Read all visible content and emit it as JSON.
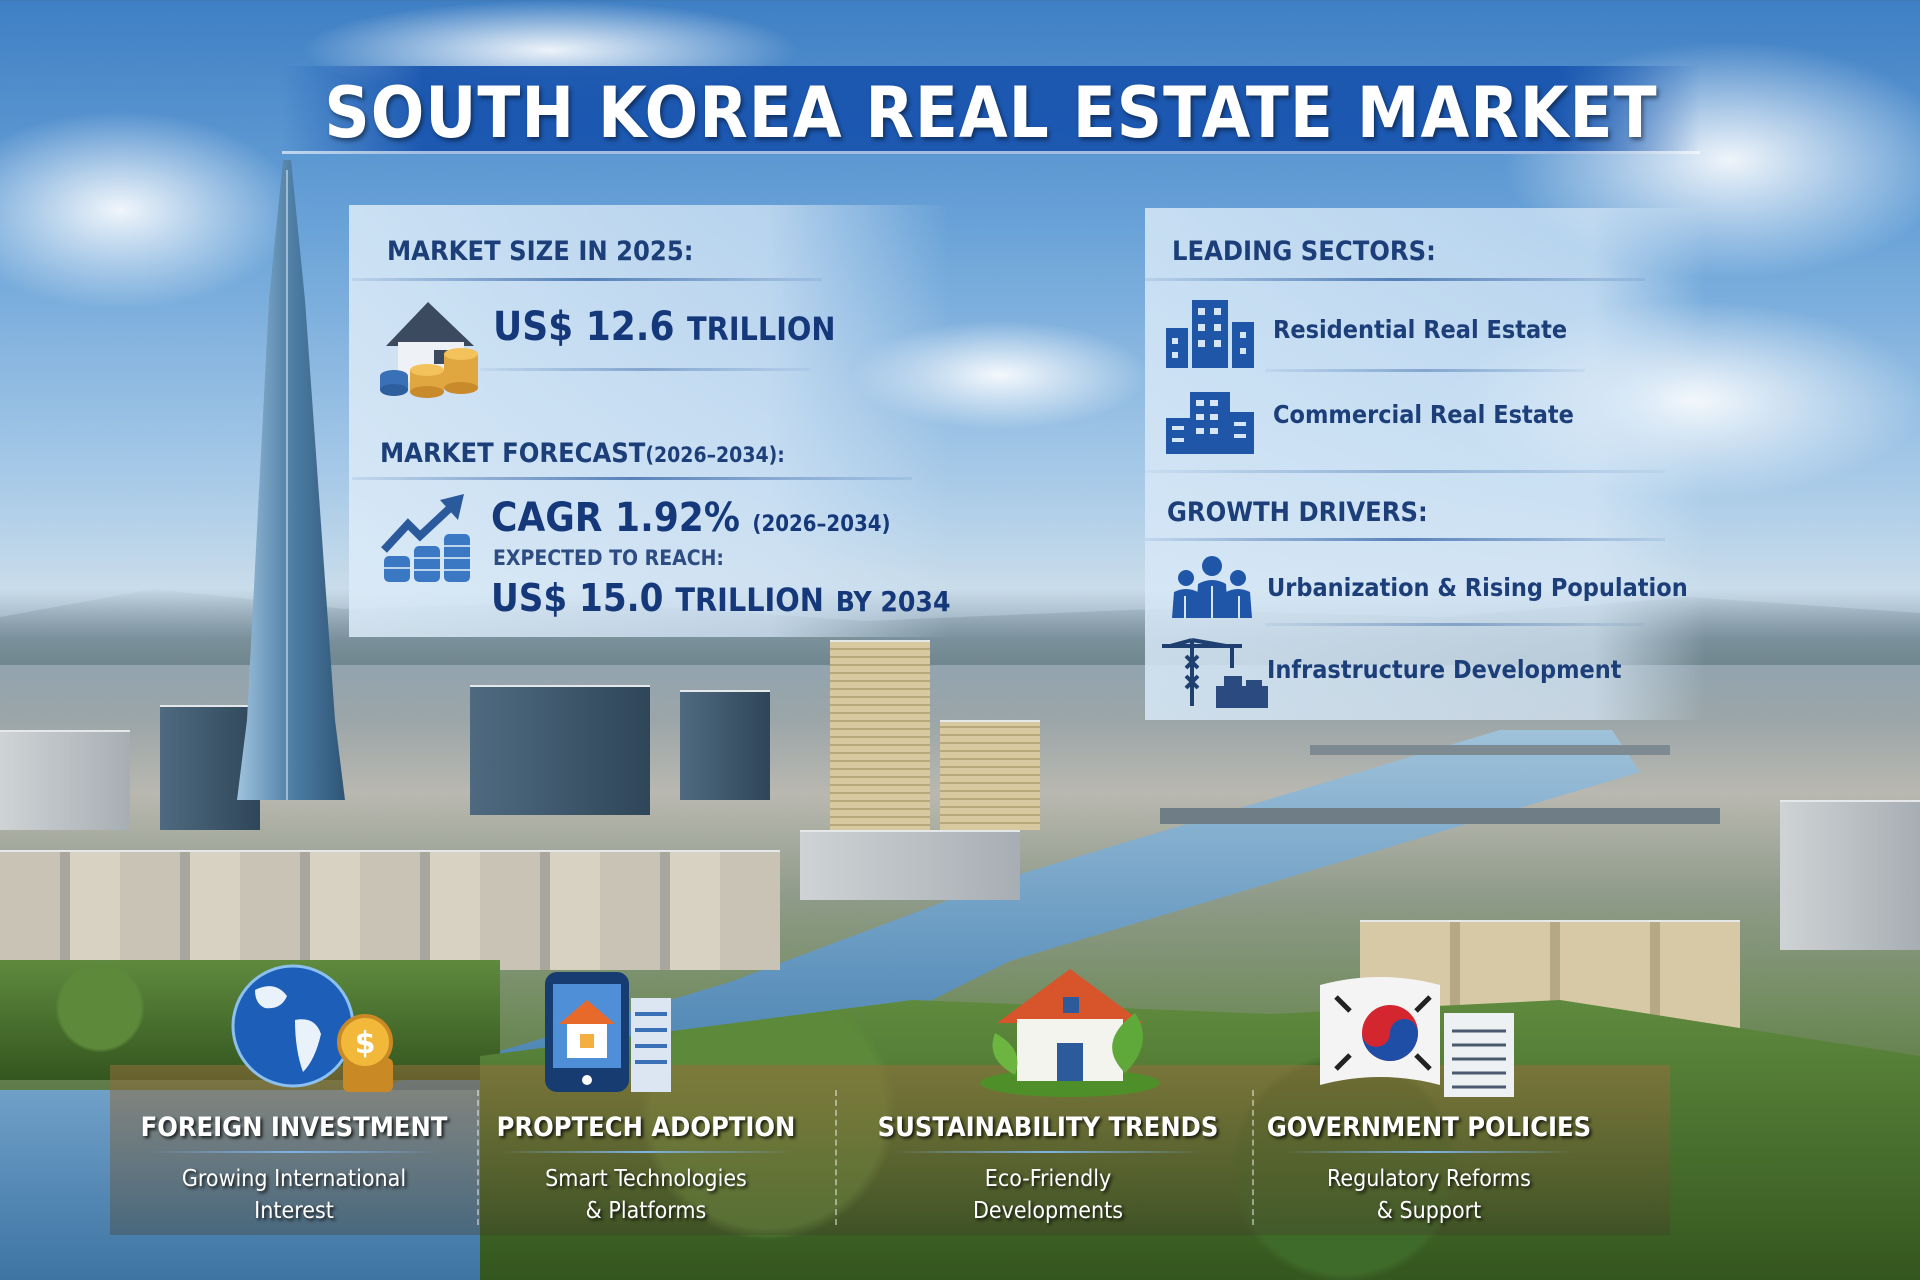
{
  "title": "SOUTH KOREA REAL ESTATE MARKET",
  "market_size": {
    "label": "MARKET SIZE IN 2025:",
    "value_prefix": "US$ 12.6",
    "value_unit": "TRILLION",
    "icon": "house-coins-icon"
  },
  "market_forecast": {
    "label": "MARKET FORECAST",
    "label_period": "(2026–2034):",
    "cagr": "CAGR 1.92%",
    "cagr_period": "(2026–2034)",
    "expected_label": "EXPECTED TO REACH:",
    "target_value": "US$ 15.0",
    "target_unit": "TRILLION",
    "target_year": "BY 2034",
    "icon": "growth-chart-coins-icon"
  },
  "leading_sectors": {
    "label": "LEADING SECTORS:",
    "items": [
      {
        "label": "Residential Real Estate",
        "icon": "residential-building-icon"
      },
      {
        "label": "Commercial Real Estate",
        "icon": "commercial-building-icon"
      }
    ]
  },
  "growth_drivers": {
    "label": "GROWTH DRIVERS:",
    "items": [
      {
        "label": "Urbanization & Rising Population",
        "icon": "people-group-icon"
      },
      {
        "label": "Infrastructure Development",
        "icon": "crane-icon"
      }
    ]
  },
  "trends": [
    {
      "title": "FOREIGN INVESTMENT",
      "line1": "Growing International",
      "line2": "Interest",
      "icon": "globe-dollar-icon"
    },
    {
      "title": "PROPTECH ADOPTION",
      "line1": "Smart Technologies",
      "line2": "& Platforms",
      "icon": "smartphone-house-icon"
    },
    {
      "title": "SUSTAINABILITY TRENDS",
      "line1": "Eco-Friendly",
      "line2": "Developments",
      "icon": "eco-house-icon"
    },
    {
      "title": "GOVERNMENT POLICIES",
      "line1": "Regulatory Reforms",
      "line2": "& Support",
      "icon": "korean-flag-document-icon"
    }
  ],
  "colors": {
    "banner": "#1955af",
    "heading_text": "#1c3f7a",
    "value_text": "#15387a"
  }
}
